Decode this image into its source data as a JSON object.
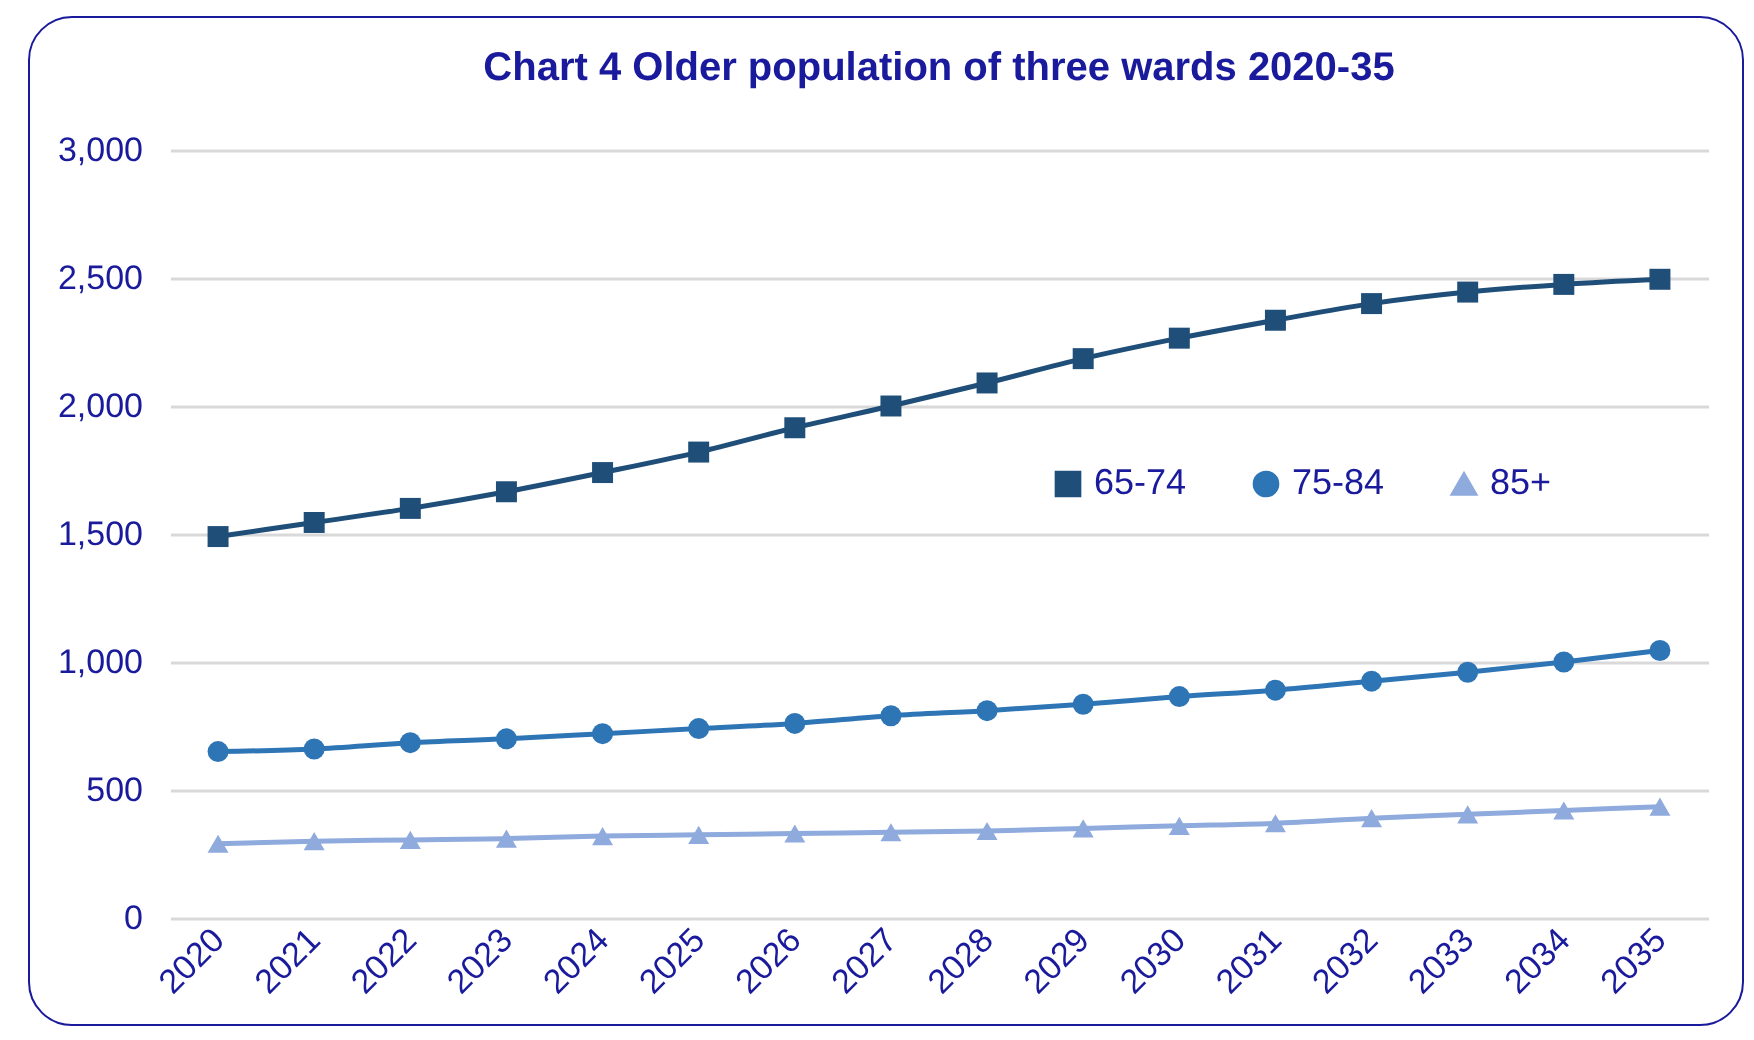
{
  "chart_data": {
    "type": "line",
    "title": "Chart 4 Older population of three wards 2020-35",
    "categories": [
      "2020",
      "2021",
      "2022",
      "2023",
      "2024",
      "2025",
      "2026",
      "2027",
      "2028",
      "2029",
      "2030",
      "2031",
      "2032",
      "2033",
      "2034",
      "2035"
    ],
    "series": [
      {
        "name": "65-74",
        "color": "#1f4e79",
        "marker": "square",
        "values": [
          1490,
          1545,
          1600,
          1665,
          1740,
          1820,
          1915,
          2000,
          2090,
          2185,
          2265,
          2335,
          2400,
          2445,
          2475,
          2495
        ]
      },
      {
        "name": "75-84",
        "color": "#2e75b6",
        "marker": "circle",
        "values": [
          650,
          660,
          685,
          700,
          720,
          740,
          760,
          790,
          810,
          835,
          865,
          890,
          925,
          960,
          1000,
          1045
        ]
      },
      {
        "name": "85+",
        "color": "#8faadc",
        "marker": "triangle",
        "values": [
          290,
          300,
          305,
          310,
          320,
          325,
          330,
          335,
          340,
          350,
          360,
          370,
          390,
          405,
          420,
          435
        ]
      }
    ],
    "ylim": [
      0,
      3000
    ],
    "yticks": [
      0,
      500,
      {
        "value": 1000,
        "label": "1,000"
      },
      {
        "value": 1500,
        "label": "1,500"
      },
      {
        "value": 2000,
        "label": "2,000"
      },
      {
        "value": 2500,
        "label": "2,500"
      },
      {
        "value": 3000,
        "label": "3,000"
      }
    ],
    "grid": "y",
    "legend": "right",
    "line_style": "solid"
  }
}
